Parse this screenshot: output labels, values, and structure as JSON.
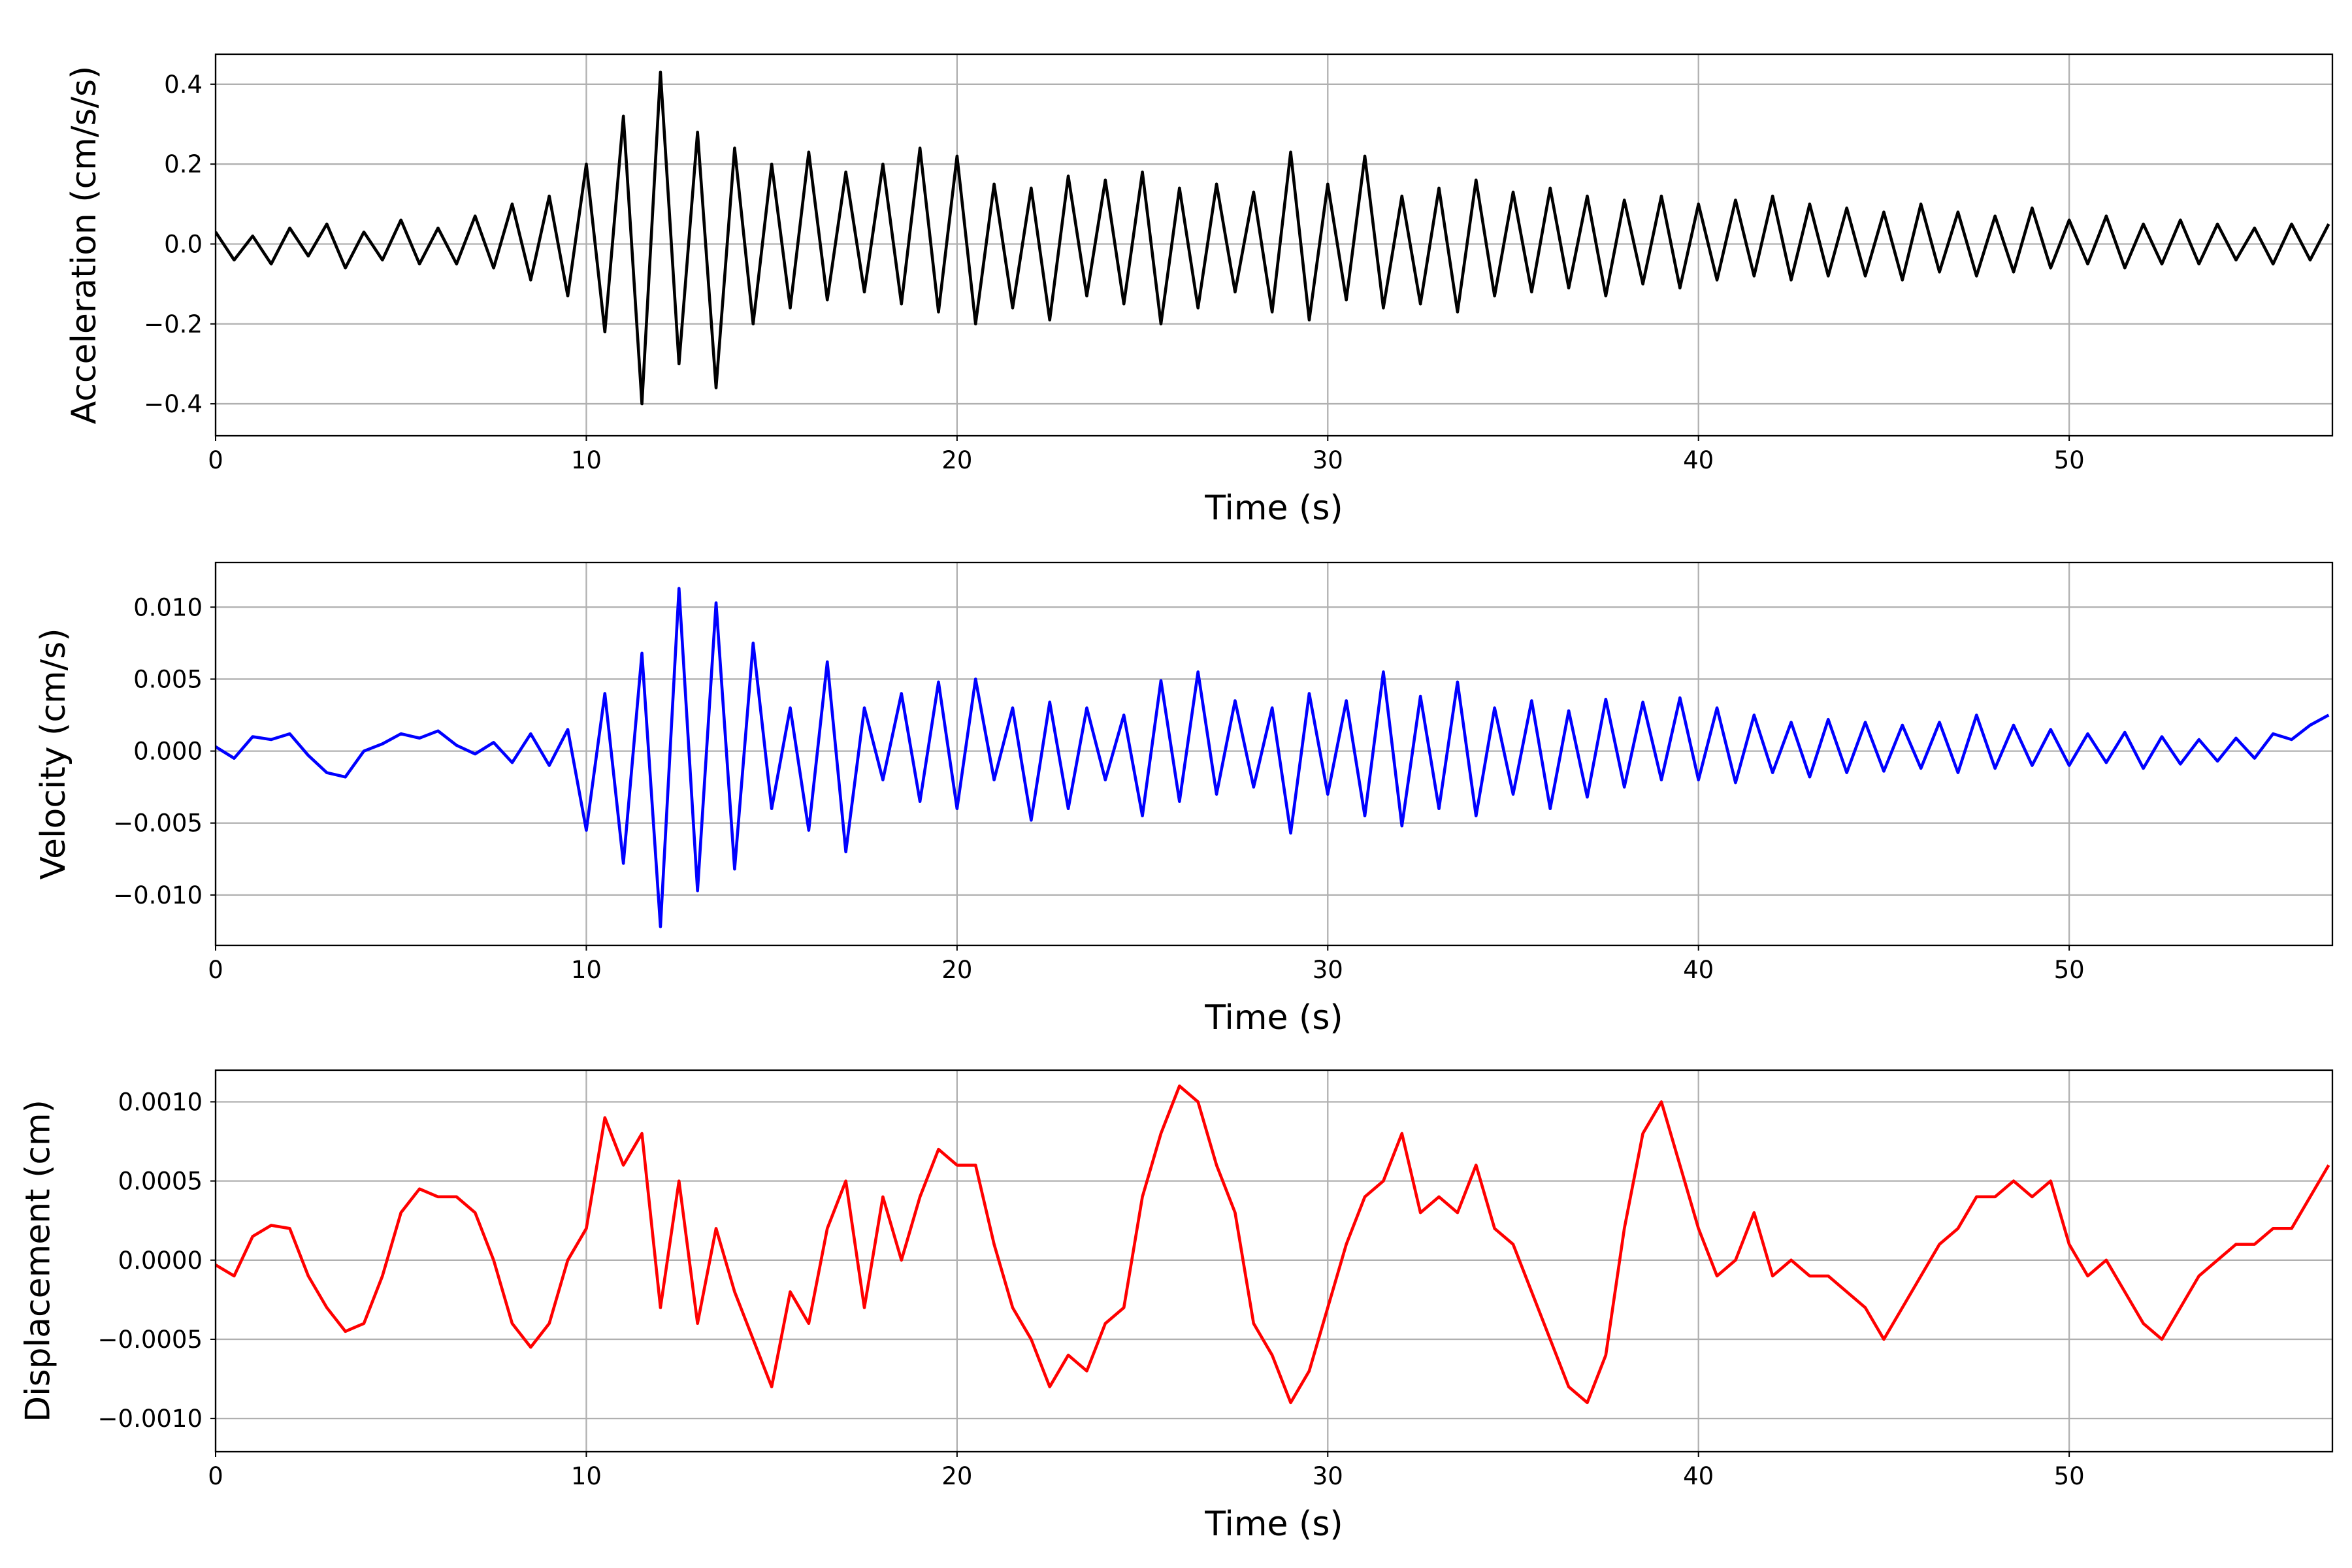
{
  "chart_data": [
    {
      "type": "line",
      "ylabel": "Acceleration (cm/s/s)",
      "xlabel": "Time (s)",
      "color": "#000000",
      "grid": true,
      "xlim": [
        0,
        57.1
      ],
      "xticks": [
        0,
        10,
        20,
        30,
        40,
        50
      ],
      "ylim": [
        -0.48,
        0.475
      ],
      "yticks": [
        {
          "value": -0.4,
          "label": "−0.4"
        },
        {
          "value": -0.2,
          "label": "−0.2"
        },
        {
          "value": 0,
          "label": "0.0"
        },
        0.2,
        0.4
      ],
      "x": [
        0,
        0.5,
        1,
        1.5,
        2,
        2.5,
        3,
        3.5,
        4,
        4.5,
        5,
        5.5,
        6,
        6.5,
        7,
        7.5,
        8,
        8.5,
        9,
        9.5,
        10,
        10.5,
        11,
        11.5,
        12,
        12.5,
        13,
        13.5,
        14,
        14.5,
        15,
        15.5,
        16,
        16.5,
        17,
        17.5,
        18,
        18.5,
        19,
        19.5,
        20,
        20.5,
        21,
        21.5,
        22,
        22.5,
        23,
        23.5,
        24,
        24.5,
        25,
        25.5,
        26,
        26.5,
        27,
        27.5,
        28,
        28.5,
        29,
        29.5,
        30,
        30.5,
        31,
        31.5,
        32,
        32.5,
        33,
        33.5,
        34,
        34.5,
        35,
        35.5,
        36,
        36.5,
        37,
        37.5,
        38,
        38.5,
        39,
        39.5,
        40,
        40.5,
        41,
        41.5,
        42,
        42.5,
        43,
        43.5,
        44,
        44.5,
        45,
        45.5,
        46,
        46.5,
        47,
        47.5,
        48,
        48.5,
        49,
        49.5,
        50,
        50.5,
        51,
        51.5,
        52,
        52.5,
        53,
        53.5,
        54,
        54.5,
        55,
        55.5,
        56,
        56.5,
        57
      ],
      "values": [
        0.03,
        -0.04,
        0.02,
        -0.05,
        0.04,
        -0.03,
        0.05,
        -0.06,
        0.03,
        -0.04,
        0.06,
        -0.05,
        0.04,
        -0.05,
        0.07,
        -0.06,
        0.1,
        -0.09,
        0.12,
        -0.13,
        0.2,
        -0.22,
        0.32,
        -0.4,
        0.43,
        -0.3,
        0.28,
        -0.36,
        0.24,
        -0.2,
        0.2,
        -0.16,
        0.23,
        -0.14,
        0.18,
        -0.12,
        0.2,
        -0.15,
        0.24,
        -0.17,
        0.22,
        -0.2,
        0.15,
        -0.16,
        0.14,
        -0.19,
        0.17,
        -0.13,
        0.16,
        -0.15,
        0.18,
        -0.2,
        0.14,
        -0.16,
        0.15,
        -0.12,
        0.13,
        -0.17,
        0.23,
        -0.19,
        0.15,
        -0.14,
        0.22,
        -0.16,
        0.12,
        -0.15,
        0.14,
        -0.17,
        0.16,
        -0.13,
        0.13,
        -0.12,
        0.14,
        -0.11,
        0.12,
        -0.13,
        0.11,
        -0.1,
        0.12,
        -0.11,
        0.1,
        -0.09,
        0.11,
        -0.08,
        0.12,
        -0.09,
        0.1,
        -0.08,
        0.09,
        -0.08,
        0.08,
        -0.09,
        0.1,
        -0.07,
        0.08,
        -0.08,
        0.07,
        -0.07,
        0.09,
        -0.06,
        0.06,
        -0.05,
        0.07,
        -0.06,
        0.05,
        -0.05,
        0.06,
        -0.05,
        0.05,
        -0.04,
        0.04,
        -0.05,
        0.05,
        -0.04,
        0.05
      ]
    },
    {
      "type": "line",
      "ylabel": "Velocity (cm/s)",
      "xlabel": "Time (s)",
      "color": "#0000ff",
      "grid": true,
      "xlim": [
        0,
        57.1
      ],
      "xticks": [
        0,
        10,
        20,
        30,
        40,
        50
      ],
      "ylim": [
        -0.0135,
        0.0131
      ],
      "yticks": [
        {
          "value": -0.01,
          "label": "−0.010"
        },
        {
          "value": -0.005,
          "label": "−0.005"
        },
        {
          "value": 0,
          "label": "0.000"
        },
        0.005,
        {
          "value": 0.01,
          "label": "0.010"
        }
      ],
      "x": [
        0,
        0.5,
        1,
        1.5,
        2,
        2.5,
        3,
        3.5,
        4,
        4.5,
        5,
        5.5,
        6,
        6.5,
        7,
        7.5,
        8,
        8.5,
        9,
        9.5,
        10,
        10.5,
        11,
        11.5,
        12,
        12.5,
        13,
        13.5,
        14,
        14.5,
        15,
        15.5,
        16,
        16.5,
        17,
        17.5,
        18,
        18.5,
        19,
        19.5,
        20,
        20.5,
        21,
        21.5,
        22,
        22.5,
        23,
        23.5,
        24,
        24.5,
        25,
        25.5,
        26,
        26.5,
        27,
        27.5,
        28,
        28.5,
        29,
        29.5,
        30,
        30.5,
        31,
        31.5,
        32,
        32.5,
        33,
        33.5,
        34,
        34.5,
        35,
        35.5,
        36,
        36.5,
        37,
        37.5,
        38,
        38.5,
        39,
        39.5,
        40,
        40.5,
        41,
        41.5,
        42,
        42.5,
        43,
        43.5,
        44,
        44.5,
        45,
        45.5,
        46,
        46.5,
        47,
        47.5,
        48,
        48.5,
        49,
        49.5,
        50,
        50.5,
        51,
        51.5,
        52,
        52.5,
        53,
        53.5,
        54,
        54.5,
        55,
        55.5,
        56,
        56.5,
        57
      ],
      "values": [
        0.0003,
        -0.0005,
        0.001,
        0.0008,
        0.0012,
        -0.0003,
        -0.0015,
        -0.0018,
        0,
        0.0005,
        0.0012,
        0.0009,
        0.0014,
        0.0004,
        -0.0002,
        0.0006,
        -0.0008,
        0.0012,
        -0.001,
        0.0015,
        -0.0055,
        0.004,
        -0.0078,
        0.0068,
        -0.0122,
        0.0113,
        -0.0097,
        0.0103,
        -0.0082,
        0.0075,
        -0.004,
        0.003,
        -0.0055,
        0.0062,
        -0.007,
        0.003,
        -0.002,
        0.004,
        -0.0035,
        0.0048,
        -0.004,
        0.005,
        -0.002,
        0.003,
        -0.0048,
        0.0034,
        -0.004,
        0.003,
        -0.002,
        0.0025,
        -0.0045,
        0.0049,
        -0.0035,
        0.0055,
        -0.003,
        0.0035,
        -0.0025,
        0.003,
        -0.0057,
        0.004,
        -0.003,
        0.0035,
        -0.0045,
        0.0055,
        -0.0052,
        0.0038,
        -0.004,
        0.0048,
        -0.0045,
        0.003,
        -0.003,
        0.0035,
        -0.004,
        0.0028,
        -0.0032,
        0.0036,
        -0.0025,
        0.0034,
        -0.002,
        0.0037,
        -0.002,
        0.003,
        -0.0022,
        0.0025,
        -0.0015,
        0.002,
        -0.0018,
        0.0022,
        -0.0015,
        0.002,
        -0.0014,
        0.0018,
        -0.0012,
        0.002,
        -0.0015,
        0.0025,
        -0.0012,
        0.0018,
        -0.001,
        0.0015,
        -0.001,
        0.0012,
        -0.0008,
        0.0013,
        -0.0012,
        0.001,
        -0.0009,
        0.0008,
        -0.0007,
        0.0009,
        -0.0005,
        0.0012,
        0.0008,
        0.0018,
        0.0025
      ]
    },
    {
      "type": "line",
      "ylabel": "Displacement (cm)",
      "xlabel": "Time (s)",
      "color": "#ff0000",
      "grid": true,
      "xlim": [
        0,
        57.1
      ],
      "xticks": [
        0,
        10,
        20,
        30,
        40,
        50
      ],
      "ylim": [
        -0.00121,
        0.0012
      ],
      "yticks": [
        {
          "value": -0.001,
          "label": "−0.0010"
        },
        {
          "value": -0.0005,
          "label": "−0.0005"
        },
        {
          "value": 0,
          "label": "0.0000"
        },
        0.0005,
        {
          "value": 0.001,
          "label": "0.0010"
        }
      ],
      "x": [
        0,
        0.5,
        1,
        1.5,
        2,
        2.5,
        3,
        3.5,
        4,
        4.5,
        5,
        5.5,
        6,
        6.5,
        7,
        7.5,
        8,
        8.5,
        9,
        9.5,
        10,
        10.5,
        11,
        11.5,
        12,
        12.5,
        13,
        13.5,
        14,
        14.5,
        15,
        15.5,
        16,
        16.5,
        17,
        17.5,
        18,
        18.5,
        19,
        19.5,
        20,
        20.5,
        21,
        21.5,
        22,
        22.5,
        23,
        23.5,
        24,
        24.5,
        25,
        25.5,
        26,
        26.5,
        27,
        27.5,
        28,
        28.5,
        29,
        29.5,
        30,
        30.5,
        31,
        31.5,
        32,
        32.5,
        33,
        33.5,
        34,
        34.5,
        35,
        35.5,
        36,
        36.5,
        37,
        37.5,
        38,
        38.5,
        39,
        39.5,
        40,
        40.5,
        41,
        41.5,
        42,
        42.5,
        43,
        43.5,
        44,
        44.5,
        45,
        45.5,
        46,
        46.5,
        47,
        47.5,
        48,
        48.5,
        49,
        49.5,
        50,
        50.5,
        51,
        51.5,
        52,
        52.5,
        53,
        53.5,
        54,
        54.5,
        55,
        55.5,
        56,
        56.5,
        57
      ],
      "values": [
        -3e-05,
        -0.0001,
        0.00015,
        0.00022,
        0.0002,
        -0.0001,
        -0.0003,
        -0.00045,
        -0.0004,
        -0.0001,
        0.0003,
        0.00045,
        0.0004,
        0.0004,
        0.0003,
        0,
        -0.0004,
        -0.00055,
        -0.0004,
        0,
        0.0002,
        0.0009,
        0.0006,
        0.0008,
        -0.0003,
        0.0005,
        -0.0004,
        0.0002,
        -0.0002,
        -0.0005,
        -0.0008,
        -0.0002,
        -0.0004,
        0.0002,
        0.0005,
        -0.0003,
        0.0004,
        0,
        0.0004,
        0.0007,
        0.0006,
        0.0006,
        0.0001,
        -0.0003,
        -0.0005,
        -0.0008,
        -0.0006,
        -0.0007,
        -0.0004,
        -0.0003,
        0.0004,
        0.0008,
        0.0011,
        0.001,
        0.0006,
        0.0003,
        -0.0004,
        -0.0006,
        -0.0009,
        -0.0007,
        -0.0003,
        0.0001,
        0.0004,
        0.0005,
        0.0008,
        0.0003,
        0.0004,
        0.0003,
        0.0006,
        0.0002,
        0.0001,
        -0.0002,
        -0.0005,
        -0.0008,
        -0.0009,
        -0.0006,
        0.0002,
        0.0008,
        0.001,
        0.0006,
        0.0002,
        -0.0001,
        0,
        0.0003,
        -0.0001,
        0,
        -0.0001,
        -0.0001,
        -0.0002,
        -0.0003,
        -0.0005,
        -0.0003,
        -0.0001,
        0.0001,
        0.0002,
        0.0004,
        0.0004,
        0.0005,
        0.0004,
        0.0005,
        0.0001,
        -0.0001,
        0,
        -0.0002,
        -0.0004,
        -0.0005,
        -0.0003,
        -0.0001,
        0,
        0.0001,
        0.0001,
        0.0002,
        0.0002,
        0.0004,
        0.0006
      ]
    }
  ]
}
